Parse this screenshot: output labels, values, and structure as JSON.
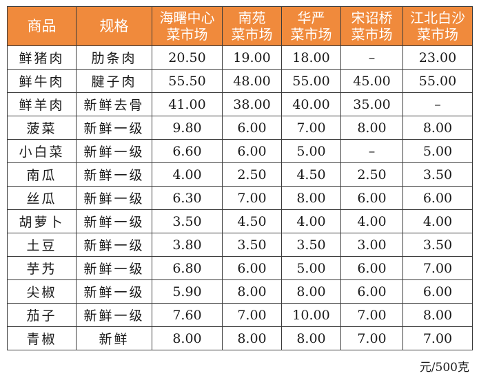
{
  "headers": {
    "product": "商品",
    "spec": "规格",
    "markets": [
      [
        "海曙中心",
        "菜市场"
      ],
      [
        "南苑",
        "菜市场"
      ],
      [
        "华严",
        "菜市场"
      ],
      [
        "宋诏桥",
        "菜市场"
      ],
      [
        "江北白沙",
        "菜市场"
      ]
    ]
  },
  "rows": [
    {
      "name": "鲜猪肉",
      "spec": "肋条肉",
      "prices": [
        "20.50",
        "19.00",
        "18.00",
        "–",
        "23.00"
      ]
    },
    {
      "name": "鲜牛肉",
      "spec": "腱子肉",
      "prices": [
        "55.50",
        "48.00",
        "55.00",
        "45.00",
        "55.00"
      ]
    },
    {
      "name": "鲜羊肉",
      "spec": "新鲜去骨",
      "prices": [
        "41.00",
        "38.00",
        "40.00",
        "35.00",
        "–"
      ]
    },
    {
      "name": "菠菜",
      "spec": "新鲜一级",
      "prices": [
        "9.80",
        "6.00",
        "7.00",
        "8.00",
        "8.00"
      ]
    },
    {
      "name": "小白菜",
      "spec": "新鲜一级",
      "prices": [
        "6.60",
        "6.00",
        "5.00",
        "–",
        "5.00"
      ]
    },
    {
      "name": "南瓜",
      "spec": "新鲜一级",
      "prices": [
        "4.00",
        "2.50",
        "4.50",
        "2.50",
        "3.50"
      ]
    },
    {
      "name": "丝瓜",
      "spec": "新鲜一级",
      "prices": [
        "6.30",
        "7.00",
        "8.00",
        "6.00",
        "6.00"
      ]
    },
    {
      "name": "胡萝卜",
      "spec": "新鲜一级",
      "prices": [
        "3.50",
        "4.50",
        "4.00",
        "4.00",
        "4.00"
      ]
    },
    {
      "name": "土豆",
      "spec": "新鲜一级",
      "prices": [
        "3.80",
        "3.50",
        "3.50",
        "3.00",
        "3.50"
      ]
    },
    {
      "name": "芋艿",
      "spec": "新鲜一级",
      "prices": [
        "6.80",
        "6.00",
        "5.00",
        "6.00",
        "7.00"
      ]
    },
    {
      "name": "尖椒",
      "spec": "新鲜一级",
      "prices": [
        "5.90",
        "8.00",
        "8.00",
        "6.00",
        "6.00"
      ]
    },
    {
      "name": "茄子",
      "spec": "新鲜一级",
      "prices": [
        "7.60",
        "7.00",
        "10.00",
        "7.00",
        "8.00"
      ]
    },
    {
      "name": "青椒",
      "spec": "新鲜",
      "prices": [
        "8.00",
        "8.00",
        "8.00",
        "7.00",
        "7.00"
      ]
    }
  ],
  "unit_note": "元/500克",
  "colors": {
    "header_bg": "#f08a3c",
    "header_text": "#ffffff",
    "border": "#3a3a3a"
  }
}
